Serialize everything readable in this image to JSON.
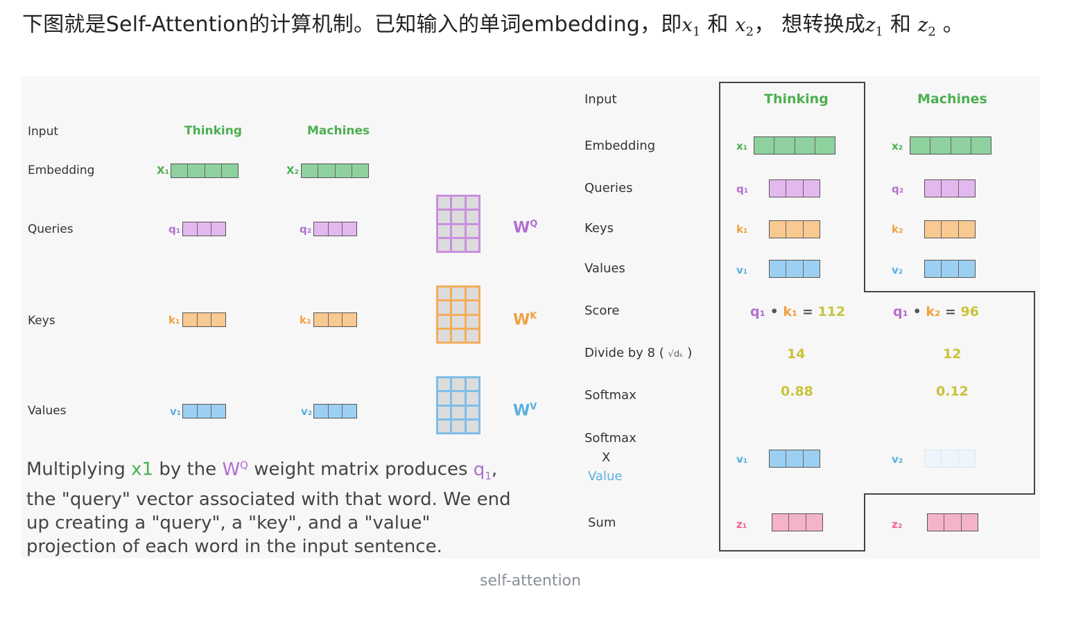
{
  "intro": {
    "prefix": "下图就是Self-Attention的计算机制。已知输入的单词embedding，即",
    "x1": "x",
    "x1_sub": "1",
    "and1": "和",
    "x2": "x",
    "x2_sub": "2",
    "mid": "，  想转换成",
    "z1": "z",
    "z1_sub": "1",
    "and2": "和",
    "z2": "z",
    "z2_sub": "2",
    "suffix": "。"
  },
  "left": {
    "row_labels": [
      "Input",
      "Embedding",
      "Queries",
      "Keys",
      "Values"
    ],
    "words": [
      "Thinking",
      "Machines"
    ],
    "x_labels": [
      "X₁",
      "X₂"
    ],
    "q_labels": [
      "q₁",
      "q₂"
    ],
    "k_labels": [
      "k₁",
      "k₂"
    ],
    "v_labels": [
      "v₁",
      "v₂"
    ],
    "weights": [
      {
        "name": "W",
        "sup": "Q",
        "color": "#b06fcf"
      },
      {
        "name": "W",
        "sup": "K",
        "color": "#f0a040"
      },
      {
        "name": "W",
        "sup": "V",
        "color": "#5aaee0"
      }
    ],
    "explain": {
      "t1": "Multiplying ",
      "x1": "x1",
      "t2": " by the ",
      "w": "W",
      "wsup": "Q",
      "t3": " weight matrix produces ",
      "q": "q",
      "qsub": "1",
      "t4": ", the \"query\" vector associated with that word. We end up creating a \"query\", a \"key\", and a \"value\" projection of each word in the input sentence."
    }
  },
  "right": {
    "row_labels": {
      "input": "Input",
      "embedding": "Embedding",
      "queries": "Queries",
      "keys": "Keys",
      "values": "Values",
      "score": "Score",
      "divide": "Divide by 8 (",
      "divide_sqrt": "√dₖ",
      "divide_close": ")",
      "softmax": "Softmax",
      "softmax2": "Softmax",
      "times": "X",
      "value": "Value",
      "sum": "Sum"
    },
    "words": [
      "Thinking",
      "Machines"
    ],
    "x_labels": [
      "x₁",
      "x₂"
    ],
    "q_labels": [
      "q₁",
      "q₂"
    ],
    "k_labels": [
      "k₁",
      "k₂"
    ],
    "v_labels": [
      "v₁",
      "v₂"
    ],
    "z_labels": [
      "z₁",
      "z₂"
    ],
    "scores": [
      {
        "q": "q₁",
        "dot": "•",
        "k": "k₁",
        "eq": "=",
        "val": "112"
      },
      {
        "q": "q₁",
        "dot": "•",
        "k": "k₂",
        "eq": "=",
        "val": "96"
      }
    ],
    "divided": [
      "14",
      "12"
    ],
    "softmax": [
      "0.88",
      "0.12"
    ]
  },
  "colors": {
    "green": "#4caf50",
    "purple": "#b06fcf",
    "orange": "#f0a040",
    "blue": "#5aaee0",
    "pink": "#f48fb1",
    "yellow": "#c9c23a"
  },
  "caption": "self-attention"
}
